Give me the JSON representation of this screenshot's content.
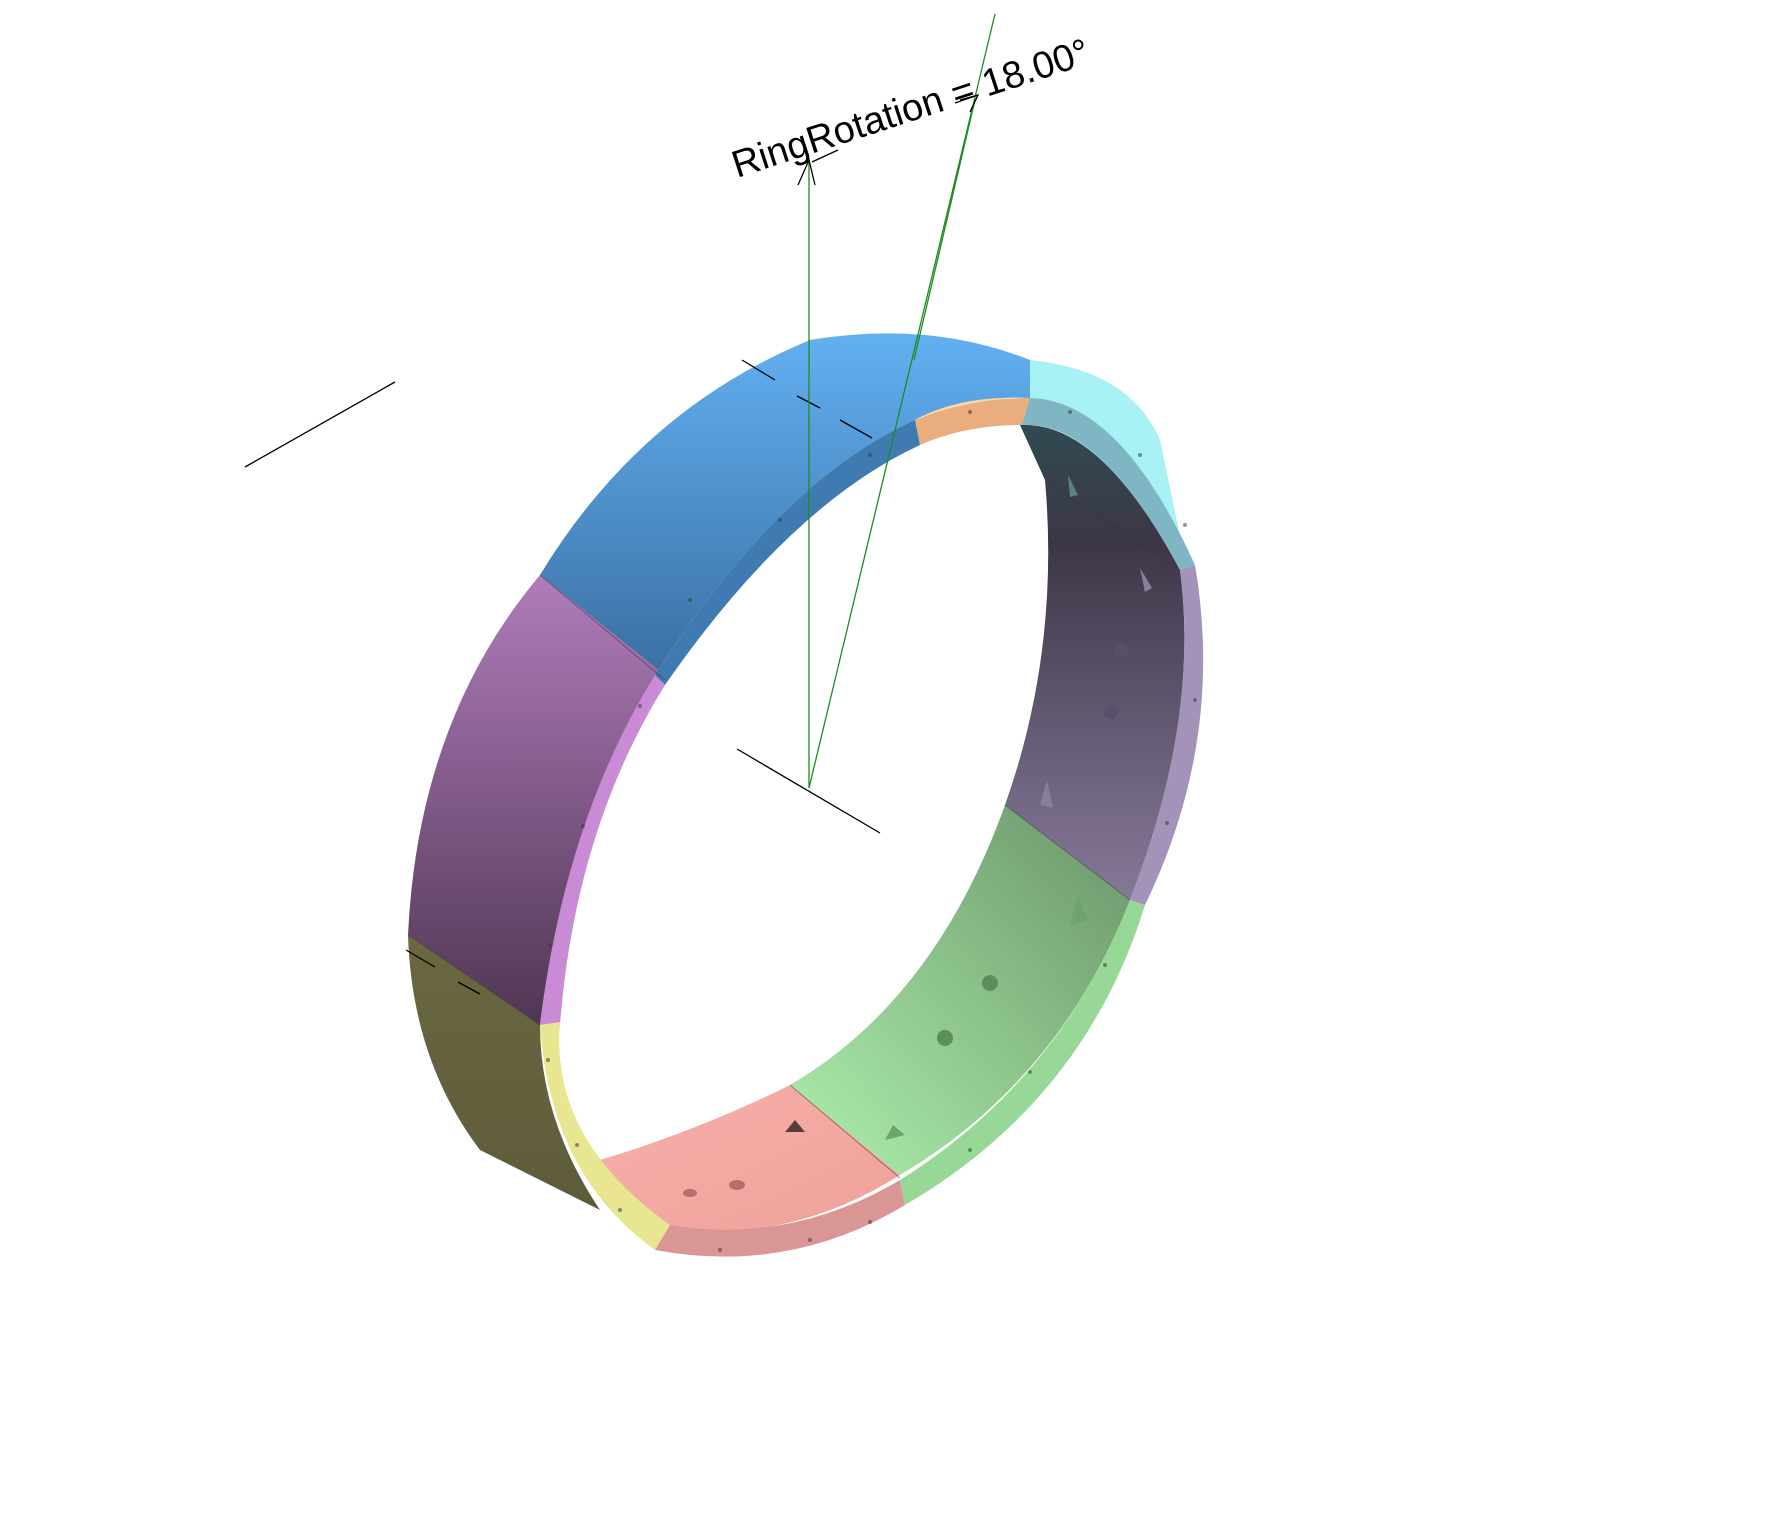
{
  "dimension": {
    "name": "RingRotation",
    "value": "18.00°",
    "label": "RingRotation = 18.00°"
  },
  "colors": {
    "background": "#ffffff",
    "axis_line": "#000000",
    "dimension_line": "#1e8c1e",
    "segments": {
      "blue": "#5aa8ec",
      "tan": "#f7dba0",
      "cyan": "#a8f1f5",
      "purple": "#9c6fa6",
      "olive": "#66643f",
      "yellow": "#e9e692",
      "salmon": "#f5a7a2",
      "green": "#a5e6a5",
      "lavender": "#a493b9",
      "teal": "#7eb6c3"
    }
  }
}
